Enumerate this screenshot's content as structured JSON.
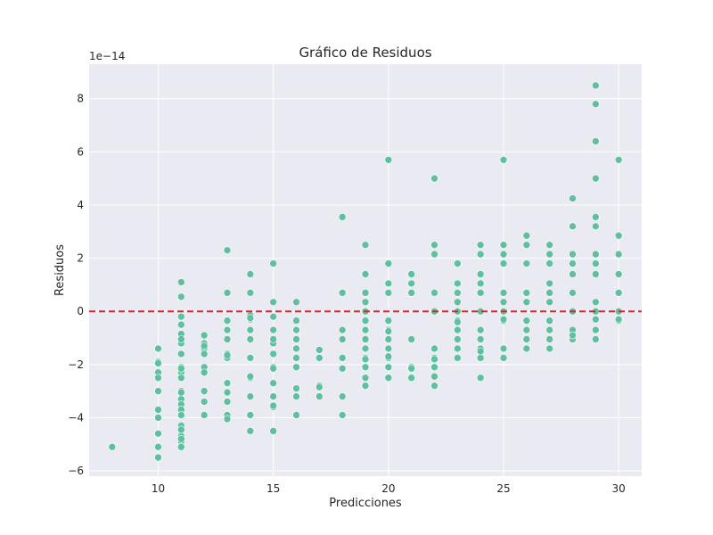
{
  "chart_data": {
    "type": "scatter",
    "title": "Gráfico de Residuos",
    "xlabel": "Predicciones",
    "ylabel": "Residuos",
    "y_offset_label": "1e−14",
    "xlim": [
      7,
      31
    ],
    "ylim": [
      -6.2,
      9.3
    ],
    "x_ticks": [
      10,
      15,
      20,
      25,
      30
    ],
    "y_ticks": [
      -6,
      -4,
      -2,
      0,
      2,
      4,
      6,
      8
    ],
    "y_tick_labels": [
      "−6",
      "−4",
      "−2",
      "0",
      "2",
      "4",
      "6",
      "8"
    ],
    "grid": true,
    "reference_line": {
      "y": 0,
      "color": "#d62728",
      "style": "dashed"
    },
    "point_color": "#5fbf9f",
    "background": "#eaeaf2",
    "series": [
      {
        "x": [
          8,
          10,
          10,
          10,
          10,
          10,
          10,
          10,
          10,
          10,
          10,
          10,
          11,
          11,
          11,
          11,
          11,
          11,
          11,
          11,
          11,
          11,
          11,
          11,
          11,
          11,
          11,
          11,
          11,
          11,
          11,
          11,
          11,
          11,
          11,
          11,
          11,
          11,
          11,
          12,
          12,
          12,
          12,
          12,
          12,
          12,
          12,
          12,
          12,
          13,
          13,
          13,
          13,
          13,
          13,
          13,
          13,
          13,
          13,
          13,
          13,
          13,
          14,
          14,
          14,
          14,
          14,
          14,
          14,
          14,
          14,
          14,
          14,
          14,
          14,
          15,
          15,
          15,
          15,
          15,
          15,
          15,
          15,
          15,
          15,
          15,
          15,
          15,
          15,
          16,
          16,
          16,
          16,
          16,
          16,
          16,
          16,
          16,
          16,
          16,
          17,
          17,
          17,
          17,
          17,
          18,
          18,
          18,
          18,
          18,
          18,
          18,
          18,
          18,
          19,
          19,
          19,
          19,
          19,
          19,
          19,
          19,
          19,
          19,
          19,
          19,
          19,
          19,
          20,
          20,
          20,
          20,
          20,
          20,
          20,
          20,
          20,
          20,
          20,
          20,
          20,
          21,
          21,
          21,
          21,
          21,
          21,
          21,
          22,
          22,
          22,
          22,
          22,
          22,
          22,
          22,
          22,
          22,
          22,
          23,
          23,
          23,
          23,
          23,
          23,
          23,
          23,
          23,
          23,
          23,
          24,
          24,
          24,
          24,
          24,
          24,
          24,
          24,
          24,
          24,
          24,
          24,
          24,
          25,
          25,
          25,
          25,
          25,
          25,
          25,
          25,
          25,
          25,
          25,
          26,
          26,
          26,
          26,
          26,
          26,
          26,
          26,
          26,
          27,
          27,
          27,
          27,
          27,
          27,
          27,
          27,
          27,
          27,
          28,
          28,
          28,
          28,
          28,
          28,
          28,
          28,
          28,
          28,
          29,
          29,
          29,
          29,
          29,
          29,
          29,
          29,
          29,
          29,
          29,
          29,
          29,
          29,
          30,
          30,
          30,
          30,
          30,
          30,
          30,
          30
        ],
        "y": [
          -5.1,
          -1.4,
          -1.9,
          -2.3,
          -2.5,
          -3.0,
          -3.7,
          -4.0,
          -4.6,
          -5.1,
          -5.5,
          -1.95,
          1.1,
          0.55,
          -0.2,
          -0.5,
          -0.9,
          -1.1,
          -1.2,
          -1.6,
          -2.1,
          -2.3,
          -2.5,
          -3.0,
          -3.3,
          -3.5,
          -3.7,
          -3.9,
          -4.3,
          -4.5,
          -4.7,
          -4.9,
          -5.1,
          -0.85,
          -1.05,
          -2.15,
          -3.05,
          -4.45,
          -4.8,
          -0.9,
          -1.2,
          -1.4,
          -1.6,
          -2.1,
          -2.3,
          -3.0,
          -3.4,
          -3.9,
          -1.3,
          2.3,
          0.7,
          -0.35,
          -0.7,
          -1.05,
          -1.6,
          -1.75,
          -2.7,
          -3.05,
          -3.4,
          -3.9,
          -4.05,
          -1.65,
          1.4,
          0.7,
          -0.15,
          -0.3,
          -0.7,
          -1.05,
          -1.75,
          -2.5,
          -3.2,
          -3.9,
          -4.5,
          -0.25,
          -2.45,
          1.8,
          0.35,
          -0.2,
          -0.7,
          -1.2,
          -1.6,
          -2.1,
          -2.7,
          -3.2,
          -3.6,
          -4.5,
          -1.05,
          -2.15,
          -3.55,
          0.35,
          -0.35,
          -0.7,
          -1.05,
          -1.4,
          -1.75,
          -2.1,
          -2.9,
          -3.2,
          -3.9,
          -0.7,
          -1.45,
          -1.75,
          -2.8,
          -3.2,
          -2.85,
          3.55,
          0.7,
          -0.7,
          -1.05,
          -1.75,
          -2.15,
          -3.2,
          -3.9,
          -1.05,
          2.5,
          1.4,
          0.7,
          0.35,
          0.0,
          -0.35,
          -0.7,
          -1.05,
          -1.4,
          -1.75,
          -2.1,
          -2.5,
          -2.8,
          -1.8,
          5.7,
          1.8,
          1.05,
          0.7,
          -0.35,
          -0.7,
          -1.05,
          -1.4,
          -1.75,
          -2.1,
          -2.5,
          -1.7,
          -0.75,
          1.4,
          1.05,
          0.7,
          -1.05,
          -2.1,
          -2.5,
          -2.15,
          5.0,
          2.5,
          2.15,
          0.7,
          0.0,
          -1.4,
          -1.75,
          -2.1,
          -2.45,
          -2.8,
          -1.8,
          1.8,
          1.05,
          0.7,
          0.35,
          0.0,
          -0.35,
          -0.7,
          -1.05,
          -1.4,
          -1.75,
          -0.4,
          2.5,
          2.15,
          1.4,
          1.05,
          0.7,
          0.0,
          -0.7,
          -1.05,
          -1.4,
          -1.75,
          -2.5,
          -1.5,
          -1.05,
          5.7,
          2.5,
          2.15,
          1.8,
          0.7,
          0.35,
          0.0,
          -0.35,
          -1.4,
          -1.75,
          -0.3,
          2.85,
          2.5,
          1.8,
          0.7,
          0.35,
          -0.35,
          -0.7,
          -1.05,
          -1.4,
          2.5,
          2.15,
          1.8,
          1.05,
          0.7,
          0.35,
          -0.35,
          -0.7,
          -1.05,
          -1.4,
          4.25,
          3.2,
          2.15,
          1.8,
          1.4,
          0.7,
          0.0,
          -0.7,
          -1.05,
          -0.9,
          8.5,
          7.8,
          6.4,
          5.0,
          3.55,
          3.2,
          2.15,
          1.8,
          1.4,
          0.35,
          0.0,
          -0.7,
          -1.05,
          -0.3,
          5.7,
          2.85,
          2.15,
          1.4,
          0.7,
          0.0,
          -0.35,
          -0.3
        ]
      }
    ]
  }
}
